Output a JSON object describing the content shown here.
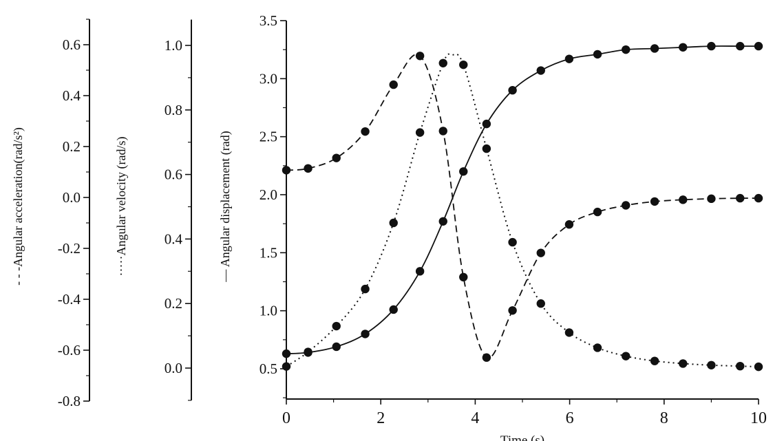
{
  "chart_data": {
    "type": "line",
    "xlabel": "Time (s)",
    "xlim": [
      0,
      10
    ],
    "xticks": [
      "0",
      "2",
      "4",
      "6",
      "8",
      "10"
    ],
    "grid": false,
    "axes": [
      {
        "id": "acceleration",
        "label": "- - -Angular acceleration(rad/s²)",
        "ylim": [
          -0.8,
          0.7
        ],
        "ticks": [
          "0.6",
          "0.4",
          "0.2",
          "0.0",
          "-0.2",
          "-0.4",
          "-0.6",
          "-0.8"
        ]
      },
      {
        "id": "velocity",
        "label": "·····Angular velocity (rad/s)",
        "ylim": [
          -0.1,
          1.08
        ],
        "ticks": [
          "1.0",
          "0.8",
          "0.6",
          "0.4",
          "0.2",
          "0.0"
        ]
      },
      {
        "id": "displacement",
        "label": "— Angular displacement (rad)",
        "ylim": [
          0.25,
          3.5
        ],
        "ticks": [
          "3.5",
          "3.0",
          "2.5",
          "2.0",
          "1.5",
          "1.0",
          "0.5"
        ]
      }
    ],
    "marker_x": [
      0,
      0.46,
      1.06,
      1.67,
      2.27,
      2.83,
      3.32,
      3.75,
      4.24,
      4.79,
      5.39,
      5.99,
      6.59,
      7.19,
      7.8,
      8.4,
      9.0,
      9.61,
      10
    ],
    "series": [
      {
        "axis": "displacement",
        "style": "solid",
        "values": [
          0.63,
          0.64,
          0.69,
          0.8,
          1.01,
          1.34,
          1.77,
          2.2,
          2.61,
          2.9,
          3.07,
          3.17,
          3.21,
          3.25,
          3.26,
          3.27,
          3.28,
          3.28,
          3.28
        ]
      },
      {
        "axis": "velocity",
        "style": "dotted",
        "values": [
          0.005,
          0.05,
          0.13,
          0.245,
          0.45,
          0.73,
          0.945,
          0.94,
          0.68,
          0.39,
          0.2,
          0.11,
          0.063,
          0.037,
          0.022,
          0.014,
          0.009,
          0.006,
          0.004
        ],
        "peak": {
          "x": 3.5,
          "y": 0.97
        }
      },
      {
        "axis": "acceleration",
        "style": "dashed",
        "values": [
          0.107,
          0.114,
          0.155,
          0.259,
          0.443,
          0.556,
          0.261,
          -0.313,
          -0.629,
          -0.444,
          -0.218,
          -0.106,
          -0.057,
          -0.031,
          -0.016,
          -0.009,
          -0.005,
          -0.003,
          -0.003
        ]
      }
    ],
    "colors": {
      "ink": "#111111"
    }
  }
}
